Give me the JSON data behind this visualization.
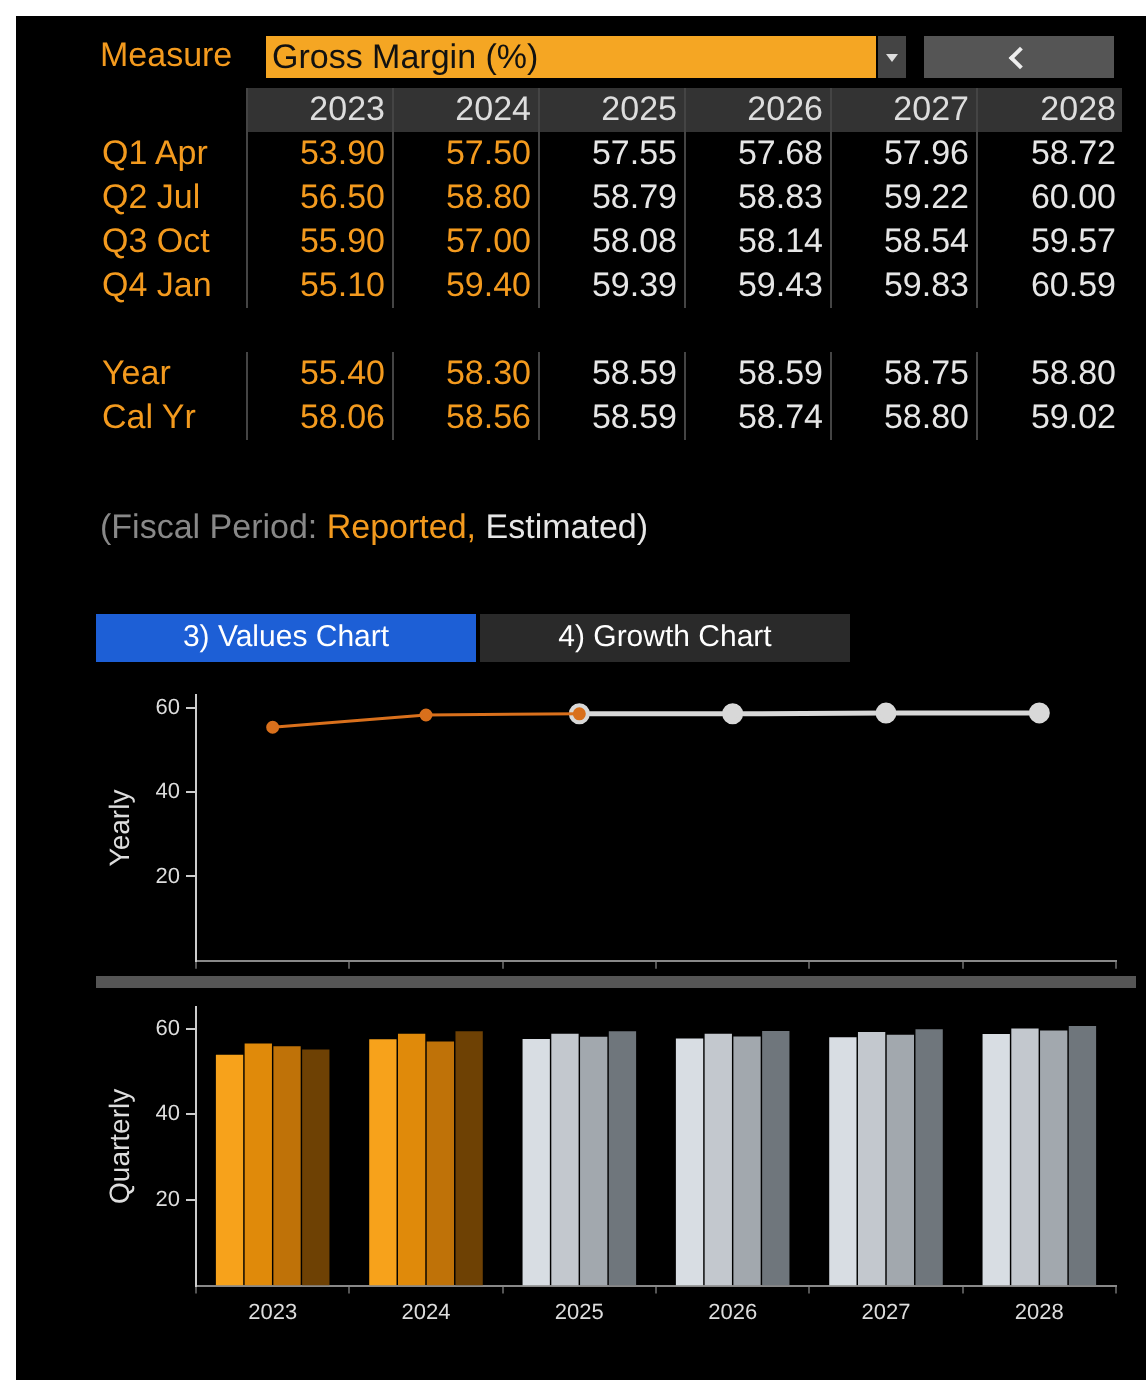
{
  "chart_data": [
    {
      "type": "heatmap",
      "title": "Measure",
      "subtitle": "Gross Margin (%)",
      "categories": [
        "2023",
        "2024",
        "2025",
        "2026",
        "2027",
        "2028"
      ],
      "y_categories": [
        "Q1 Apr",
        "Q2 Jul",
        "Q3 Oct",
        "Q4 Jan"
      ],
      "colors": [
        "#f39a1e",
        "#f39a1e",
        "#e6e6e6",
        "#e6e6e6",
        "#e6e6e6",
        "#e6e6e6"
      ],
      "cells": [
        [
          53.9,
          57.5,
          57.55,
          57.68,
          57.96,
          58.72
        ],
        [
          56.5,
          58.8,
          58.79,
          58.83,
          59.22,
          60.0
        ],
        [
          55.9,
          57.0,
          58.08,
          58.14,
          58.54,
          59.57
        ],
        [
          55.1,
          59.4,
          59.39,
          59.43,
          59.83,
          60.59
        ]
      ],
      "cell_labels": [
        [
          "53.90",
          "57.50",
          "57.55",
          "57.68",
          "57.96",
          "58.72"
        ],
        [
          "56.50",
          "58.80",
          "58.79",
          "58.83",
          "59.22",
          "60.00"
        ],
        [
          "55.90",
          "57.00",
          "58.08",
          "58.14",
          "58.54",
          "59.57"
        ],
        [
          "55.10",
          "59.40",
          "59.39",
          "59.43",
          "59.83",
          "60.59"
        ]
      ]
    },
    {
      "type": "heatmap",
      "categories": [
        "2023",
        "2024",
        "2025",
        "2026",
        "2027",
        "2028"
      ],
      "tick_labels": "y",
      "y_categories": [
        "Year",
        "Cal Yr"
      ],
      "colors": [
        "#f39a1e",
        "#f39a1e",
        "#e6e6e6",
        "#e6e6e6",
        "#e6e6e6",
        "#e6e6e6"
      ],
      "cells": [
        [
          55.4,
          58.3,
          58.59,
          58.59,
          58.75,
          58.8
        ],
        [
          58.06,
          58.56,
          58.59,
          58.74,
          58.8,
          59.02
        ]
      ],
      "cell_labels": [
        [
          "55.40",
          "58.30",
          "58.59",
          "58.59",
          "58.75",
          "58.80"
        ],
        [
          "58.06",
          "58.56",
          "58.59",
          "58.74",
          "58.80",
          "59.02"
        ]
      ],
      "annotations": [
        "(Fiscal Period: ",
        "Reported,",
        " Estimated)",
        "3) Values Chart",
        "4) Growth Chart"
      ]
    },
    {
      "type": "line",
      "ylabel": "Yearly",
      "categories": [
        "2023",
        "2024",
        "2025",
        "2026",
        "2027",
        "2028"
      ],
      "ylim": [
        0,
        63
      ],
      "yticks": [
        20,
        40,
        60
      ],
      "tick_labels": "y",
      "grid": false,
      "legend": false,
      "marker": "circle",
      "series": [
        {
          "color": "#d9701c",
          "values": [
            55.4,
            58.3,
            58.59,
            null,
            null,
            null
          ]
        },
        {
          "color": "#d8d8d8",
          "values": [
            null,
            null,
            58.59,
            58.59,
            58.75,
            58.8
          ]
        }
      ]
    },
    {
      "type": "bar",
      "ylabel": "Quarterly",
      "categories": [
        "2023",
        "2024",
        "2025",
        "2026",
        "2027",
        "2028"
      ],
      "ylim": [
        0,
        65
      ],
      "yticks": [
        20,
        40,
        60
      ],
      "grid": false,
      "legend": false,
      "series": [
        {
          "colors": [
            "#f7a21b",
            "#f7a21b",
            "#d8dde3",
            "#d8dde3",
            "#d8dde3",
            "#d8dde3"
          ],
          "values": [
            53.9,
            57.5,
            57.55,
            57.68,
            57.96,
            58.72
          ]
        },
        {
          "colors": [
            "#e08a0a",
            "#e08a0a",
            "#c3c8ce",
            "#c3c8ce",
            "#c3c8ce",
            "#c3c8ce"
          ],
          "values": [
            56.5,
            58.8,
            58.79,
            58.83,
            59.22,
            60.0
          ]
        },
        {
          "colors": [
            "#bf7208",
            "#bf7208",
            "#a2a8ae",
            "#a2a8ae",
            "#a2a8ae",
            "#a2a8ae"
          ],
          "values": [
            55.9,
            57.0,
            58.08,
            58.14,
            58.54,
            59.57
          ]
        },
        {
          "colors": [
            "#6e4104",
            "#6e4104",
            "#6f767c",
            "#6f767c",
            "#6f767c",
            "#6f767c"
          ],
          "values": [
            55.1,
            59.4,
            59.39,
            59.43,
            59.83,
            60.59
          ]
        }
      ]
    }
  ]
}
